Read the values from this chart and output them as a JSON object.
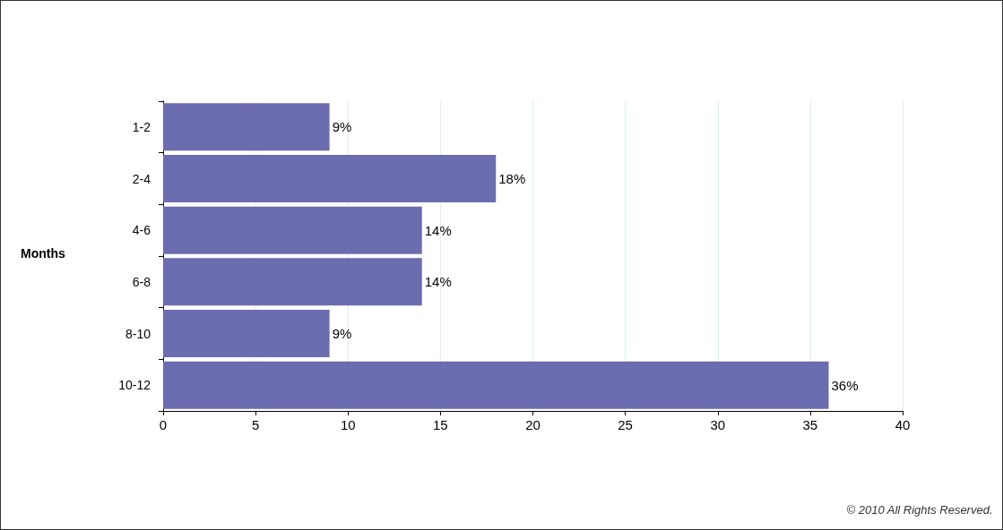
{
  "chart_data": {
    "type": "bar",
    "orientation": "horizontal",
    "ylabel": "Months",
    "categories": [
      "1-2",
      "2-4",
      "4-6",
      "6-8",
      "8-10",
      "10-12"
    ],
    "values": [
      9,
      18,
      14,
      14,
      9,
      36
    ],
    "value_labels": [
      "9%",
      "18%",
      "14%",
      "14%",
      "9%",
      "36%"
    ],
    "color": "#6c6cb0",
    "xlim": [
      0,
      40
    ],
    "xticks": [
      0,
      5,
      10,
      15,
      20,
      25,
      30,
      35,
      40
    ],
    "grid": "x",
    "annotations": [
      "© 2010 All Rights Reserved."
    ]
  }
}
